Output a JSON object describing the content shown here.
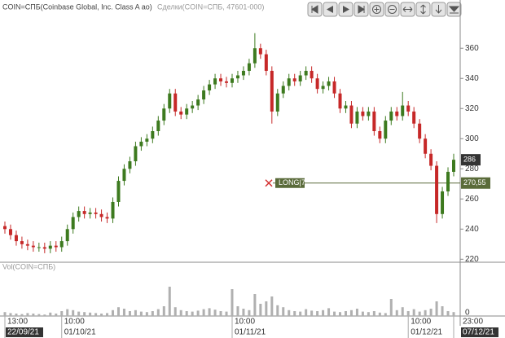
{
  "chart_data": {
    "type": "candlestick",
    "title": "COIN=СПБ(Coinbase Global, Inc. Class A ao)",
    "subtitle": "Сделки(COIN=СПБ, 47601-000)",
    "categories": [
      "13:00",
      null,
      null,
      null,
      null,
      null,
      null,
      null,
      null,
      null,
      "10:00",
      null,
      null,
      null,
      null,
      null,
      null,
      null,
      null,
      null,
      null,
      null,
      null,
      null,
      null,
      null,
      null,
      null,
      null,
      null,
      null,
      null,
      null,
      null,
      null,
      null,
      null,
      null,
      null,
      null,
      "10:00",
      null,
      null,
      null,
      null,
      null,
      null,
      null,
      null,
      null,
      null,
      null,
      null,
      null,
      null,
      null,
      null,
      null,
      null,
      null,
      null,
      null,
      null,
      null,
      null,
      null,
      null,
      null,
      null,
      null,
      null,
      "10:00",
      null,
      null,
      null,
      null,
      null,
      null,
      null,
      "23:00"
    ],
    "dates": [
      "22/09/21",
      null,
      null,
      null,
      null,
      null,
      null,
      null,
      null,
      null,
      "01/10/21",
      null,
      null,
      null,
      null,
      null,
      null,
      null,
      null,
      null,
      null,
      null,
      null,
      null,
      null,
      null,
      null,
      null,
      null,
      null,
      null,
      null,
      null,
      null,
      null,
      null,
      null,
      null,
      null,
      null,
      "01/11/21",
      null,
      null,
      null,
      null,
      null,
      null,
      null,
      null,
      null,
      null,
      null,
      null,
      null,
      null,
      null,
      null,
      null,
      null,
      null,
      null,
      null,
      null,
      null,
      null,
      null,
      null,
      null,
      null,
      null,
      null,
      "01/12/21",
      null,
      null,
      null,
      null,
      null,
      null,
      null,
      "07/12/21"
    ],
    "open": [
      242,
      240,
      236,
      232,
      230,
      229,
      228,
      228,
      227,
      229,
      228,
      232,
      240,
      248,
      252,
      250,
      251,
      250,
      248,
      247,
      258,
      272,
      280,
      285,
      295,
      298,
      300,
      305,
      312,
      320,
      330,
      318,
      316,
      320,
      322,
      326,
      332,
      336,
      340,
      338,
      337,
      340,
      342,
      345,
      350,
      360,
      356,
      345,
      318,
      330,
      335,
      340,
      338,
      342,
      345,
      340,
      333,
      335,
      338,
      330,
      320,
      322,
      310,
      318,
      315,
      318,
      305,
      300,
      312,
      318,
      315,
      322,
      318,
      310,
      300,
      290,
      282,
      250,
      265,
      278
    ],
    "high": [
      245,
      243,
      239,
      235,
      233,
      232,
      231,
      231,
      232,
      232,
      235,
      243,
      251,
      255,
      255,
      254,
      254,
      253,
      251,
      261,
      275,
      283,
      288,
      298,
      301,
      303,
      308,
      315,
      323,
      333,
      333,
      321,
      323,
      325,
      329,
      335,
      339,
      343,
      343,
      341,
      343,
      345,
      348,
      353,
      370,
      363,
      359,
      348,
      333,
      338,
      343,
      343,
      345,
      348,
      348,
      343,
      338,
      341,
      341,
      333,
      325,
      325,
      321,
      321,
      321,
      321,
      308,
      315,
      321,
      321,
      331,
      325,
      321,
      313,
      303,
      293,
      285,
      268,
      281,
      290
    ],
    "low": [
      237,
      233,
      229,
      227,
      226,
      225,
      225,
      224,
      224,
      225,
      225,
      229,
      237,
      245,
      247,
      247,
      247,
      245,
      244,
      244,
      255,
      269,
      277,
      282,
      292,
      295,
      297,
      302,
      309,
      317,
      315,
      313,
      313,
      317,
      319,
      323,
      329,
      333,
      335,
      334,
      334,
      337,
      339,
      342,
      347,
      353,
      342,
      310,
      315,
      327,
      332,
      335,
      335,
      339,
      337,
      330,
      330,
      332,
      327,
      317,
      317,
      307,
      307,
      312,
      312,
      302,
      297,
      297,
      309,
      312,
      312,
      315,
      307,
      297,
      287,
      279,
      244,
      247,
      262,
      275
    ],
    "close": [
      240,
      236,
      232,
      230,
      229,
      228,
      228,
      227,
      229,
      228,
      232,
      240,
      248,
      252,
      250,
      251,
      250,
      248,
      247,
      258,
      272,
      280,
      285,
      295,
      298,
      300,
      305,
      312,
      320,
      330,
      318,
      316,
      320,
      322,
      326,
      332,
      336,
      340,
      338,
      337,
      340,
      342,
      345,
      350,
      360,
      356,
      345,
      318,
      330,
      335,
      340,
      338,
      342,
      345,
      340,
      333,
      335,
      338,
      330,
      320,
      322,
      310,
      318,
      315,
      318,
      305,
      300,
      312,
      318,
      315,
      322,
      318,
      310,
      300,
      290,
      282,
      250,
      265,
      278,
      286
    ],
    "up_color": "#3d7a1f",
    "down_color": "#c62828",
    "ylim": [
      218,
      392
    ],
    "yticks": [
      220,
      240,
      260,
      280,
      300,
      320,
      340,
      360
    ],
    "order_line": {
      "value": 270.55,
      "label": "270,55",
      "annotation": "LONG|7",
      "color": "#5a6b3a"
    },
    "volume": {
      "title": "Vol(COIN=СПБ)",
      "color": "#b0b0b0",
      "ylim": [
        0,
        100
      ],
      "yticks": [
        0
      ],
      "values": [
        8,
        6,
        5,
        4,
        6,
        5,
        4,
        3,
        7,
        5,
        10,
        14,
        12,
        9,
        8,
        7,
        6,
        5,
        6,
        12,
        18,
        15,
        10,
        12,
        9,
        8,
        10,
        14,
        20,
        60,
        18,
        12,
        10,
        9,
        11,
        14,
        16,
        13,
        10,
        9,
        55,
        20,
        15,
        12,
        45,
        25,
        30,
        40,
        22,
        18,
        12,
        10,
        9,
        14,
        11,
        10,
        12,
        16,
        9,
        8,
        10,
        12,
        15,
        9,
        8,
        10,
        7,
        6,
        35,
        12,
        18,
        10,
        14,
        9,
        12,
        15,
        30,
        20,
        10,
        8
      ]
    }
  }
}
